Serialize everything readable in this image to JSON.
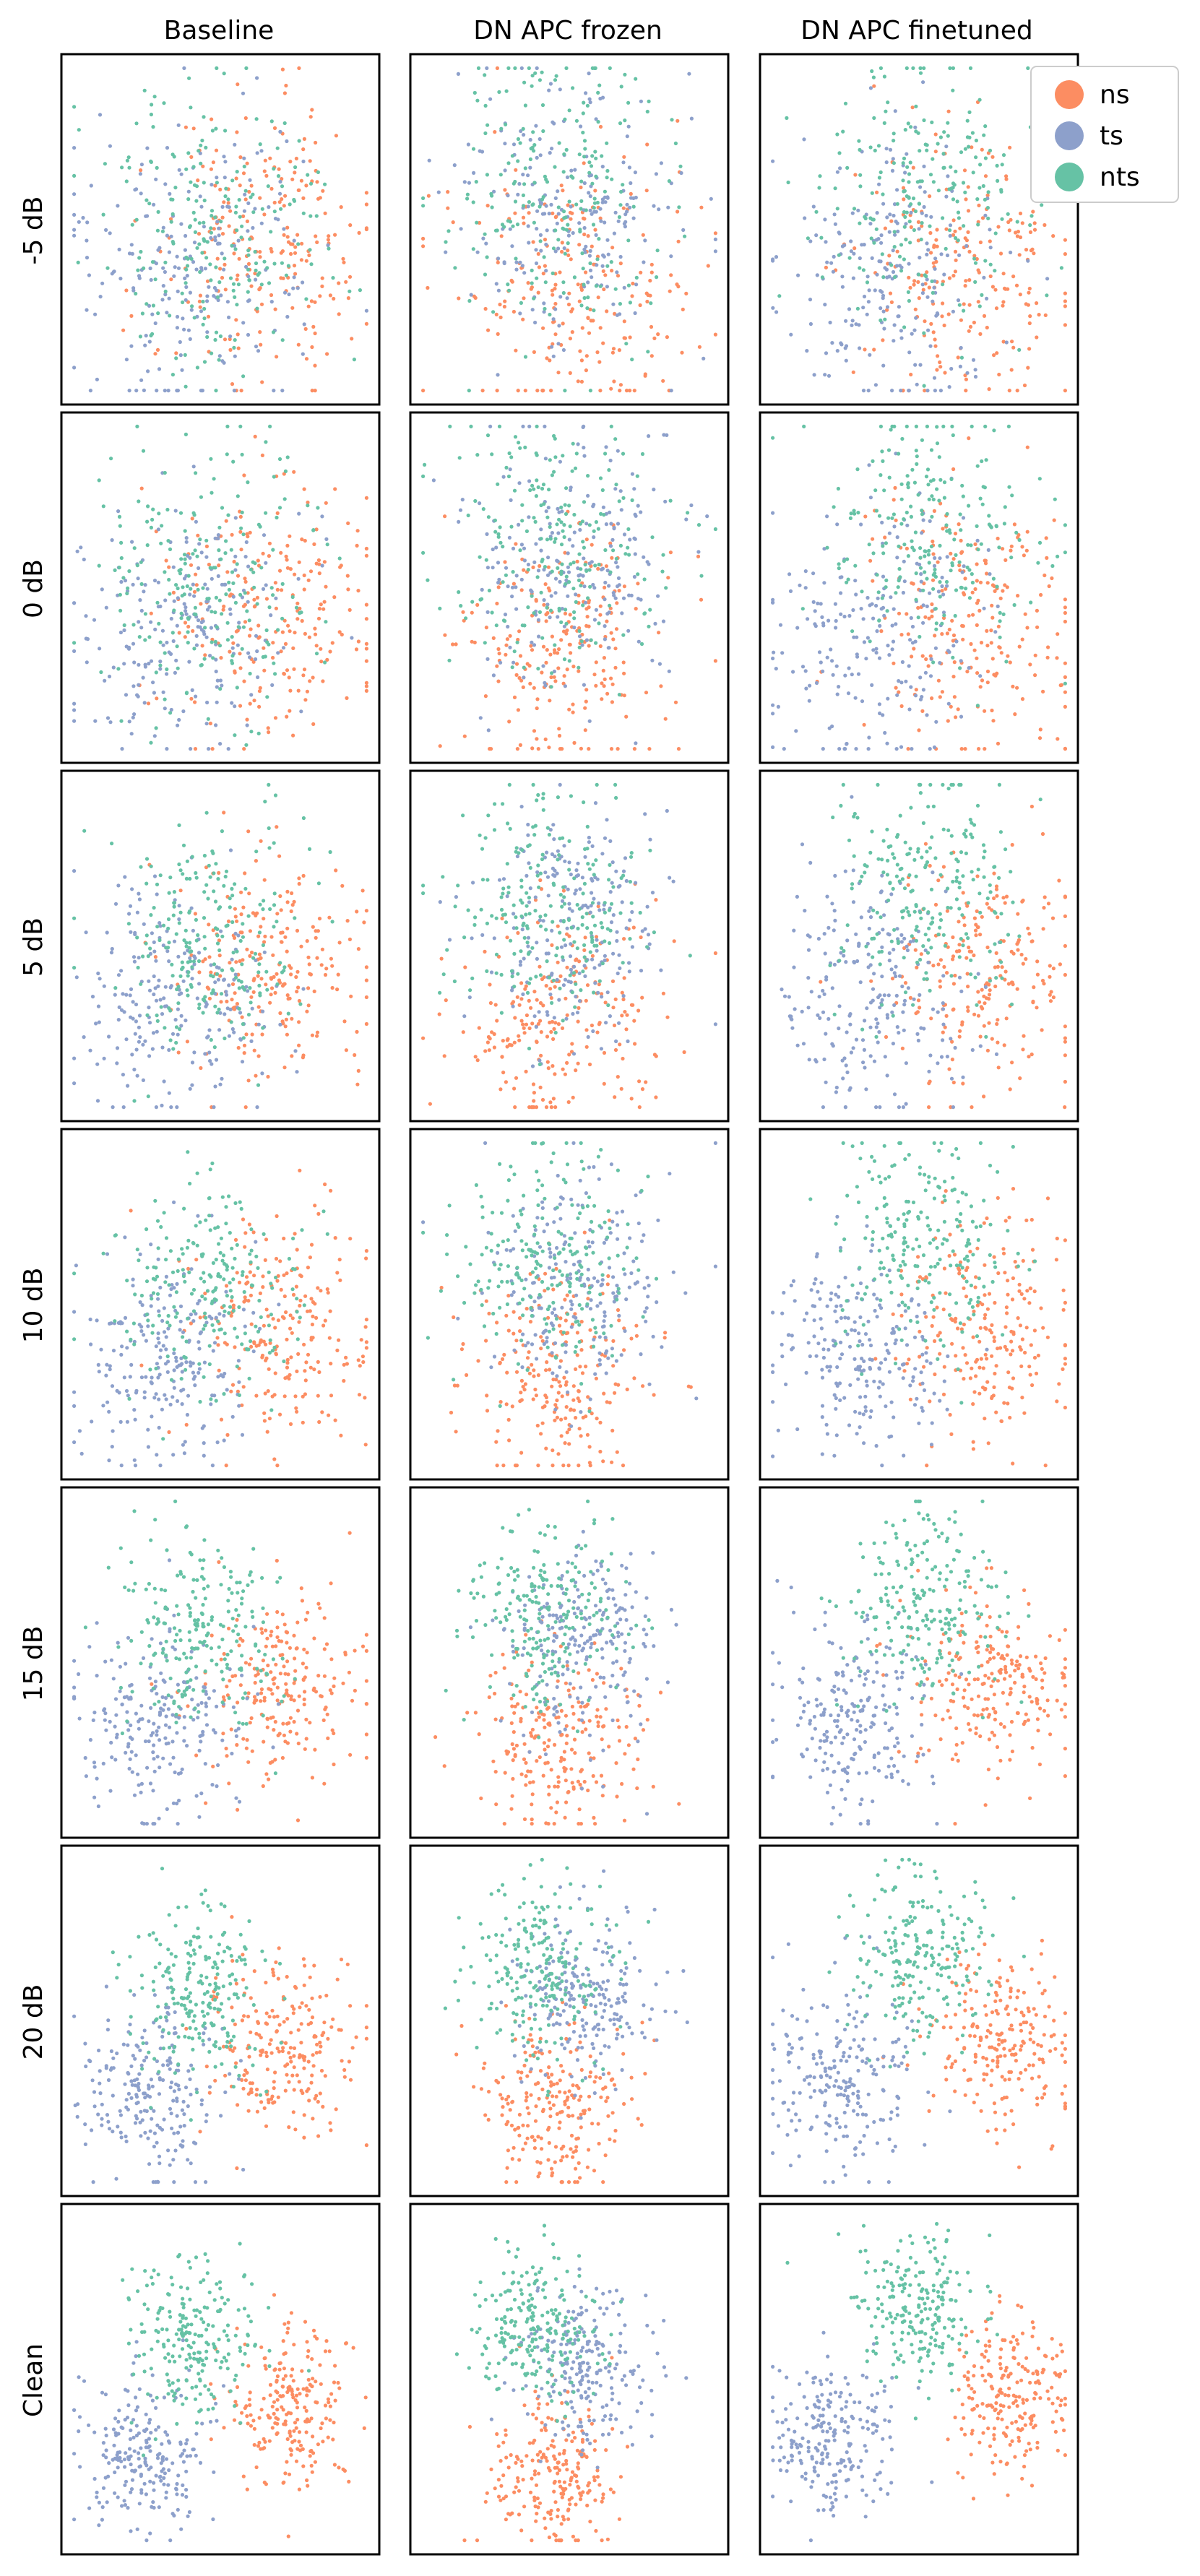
{
  "chart_data": {
    "type": "scatter",
    "layout": "grid",
    "columns": [
      "Baseline",
      "DN APC frozen",
      "DN APC finetuned"
    ],
    "rows": [
      "-5 dB",
      "0 dB",
      "5 dB",
      "10 dB",
      "15 dB",
      "20 dB",
      "Clean"
    ],
    "series": [
      {
        "name": "ns",
        "color": "#fc8d62"
      },
      {
        "name": "ts",
        "color": "#8da0cb"
      },
      {
        "name": "nts",
        "color": "#66c2a5"
      }
    ],
    "legend": {
      "placement": "top-right",
      "items": [
        "ns",
        "ts",
        "nts"
      ]
    },
    "axes": {
      "ticks": false,
      "grid": false
    }
  }
}
